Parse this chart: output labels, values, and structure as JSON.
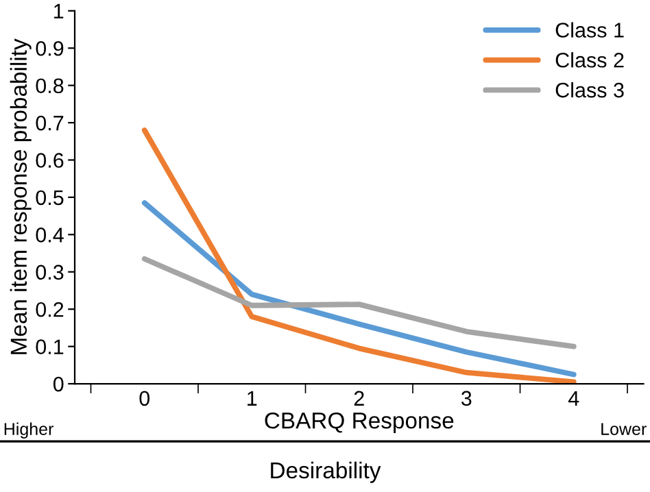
{
  "chart_data": {
    "type": "line",
    "xlabel": "CBARQ Response",
    "ylabel": "Mean item response probability",
    "categories": [
      "0",
      "1",
      "2",
      "3",
      "4"
    ],
    "series": [
      {
        "name": "Class 1",
        "color": "#5b9bd5",
        "values": [
          0.485,
          0.24,
          0.16,
          0.085,
          0.025
        ]
      },
      {
        "name": "Class 2",
        "color": "#ed7d31",
        "values": [
          0.68,
          0.18,
          0.095,
          0.03,
          0.005
        ]
      },
      {
        "name": "Class 3",
        "color": "#a5a5a5",
        "values": [
          0.335,
          0.21,
          0.213,
          0.14,
          0.1
        ]
      }
    ],
    "ylim": [
      0,
      1
    ],
    "yticks": [
      0,
      0.1,
      0.2,
      0.3,
      0.4,
      0.5,
      0.6,
      0.7,
      0.8,
      0.9,
      1
    ],
    "grid": false,
    "legend": "top right",
    "marker": "none",
    "line_style": "solid",
    "annotations": [
      "Higher",
      "Lower",
      "Desirability"
    ]
  }
}
